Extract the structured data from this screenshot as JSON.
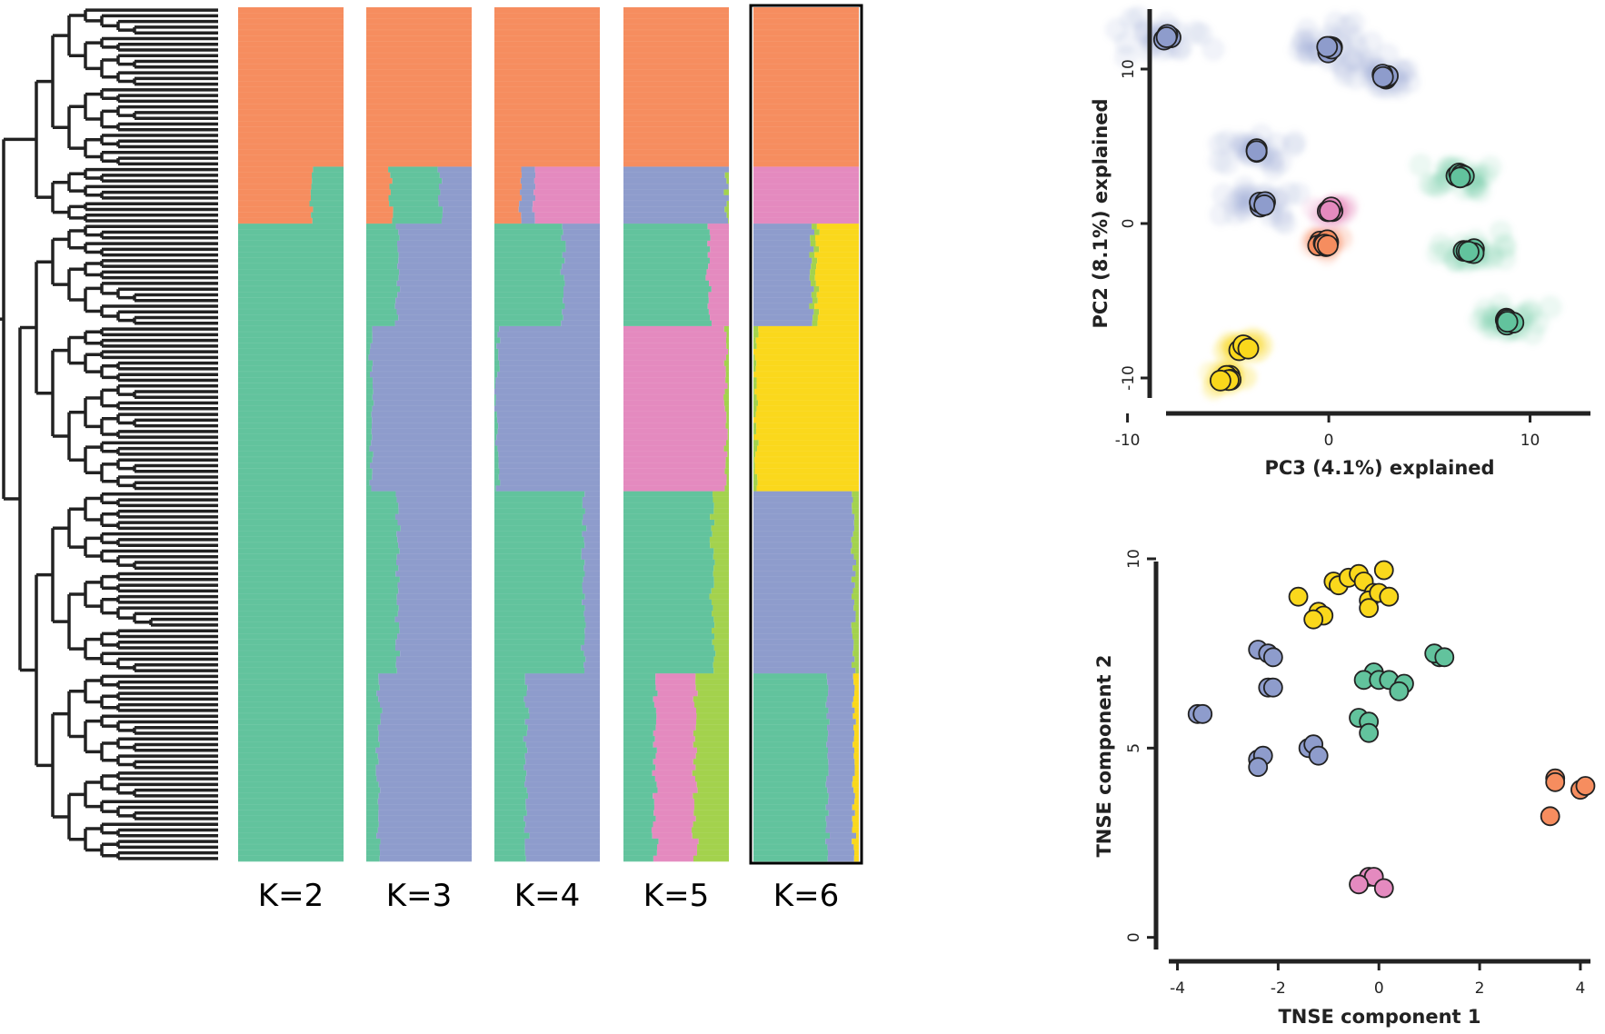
{
  "colors": {
    "orange": "#f68d5f",
    "green": "#62c39d",
    "blue": "#8e9ccc",
    "pink": "#e48abf",
    "lime": "#a3d24d",
    "yellow": "#fad81c"
  },
  "structure": {
    "k_labels": [
      "K=2",
      "K=3",
      "K=4",
      "K=5",
      "K=6"
    ],
    "highlighted": "K=6",
    "n_samples": 150
  },
  "chart_data": [
    {
      "type": "bar",
      "subtype": "stacked-admixture",
      "panels": [
        {
          "label": "K=2",
          "blocks": [
            {
              "rows": [
                0,
                28
              ],
              "components": {
                "orange": 1.0
              }
            },
            {
              "rows": [
                28,
                38
              ],
              "components": {
                "green": 0.3,
                "orange": 0.7
              }
            },
            {
              "rows": [
                38,
                150
              ],
              "components": {
                "green": 1.0
              }
            }
          ]
        },
        {
          "label": "K=3",
          "blocks": [
            {
              "rows": [
                0,
                28
              ],
              "components": {
                "orange": 1.0
              }
            },
            {
              "rows": [
                28,
                38
              ],
              "components": {
                "green": 0.47,
                "orange": 0.23,
                "blue": 0.3
              }
            },
            {
              "rows": [
                38,
                56
              ],
              "components": {
                "green": 0.3,
                "blue": 0.7
              }
            },
            {
              "rows": [
                56,
                85
              ],
              "components": {
                "green": 0.05,
                "blue": 0.95
              }
            },
            {
              "rows": [
                85,
                117
              ],
              "components": {
                "green": 0.3,
                "blue": 0.7
              }
            },
            {
              "rows": [
                117,
                150
              ],
              "components": {
                "green": 0.12,
                "blue": 0.88
              }
            }
          ]
        },
        {
          "label": "K=4",
          "blocks": [
            {
              "rows": [
                0,
                28
              ],
              "components": {
                "orange": 1.0
              }
            },
            {
              "rows": [
                28,
                38
              ],
              "components": {
                "orange": 0.25,
                "blue": 0.13,
                "pink": 0.62
              }
            },
            {
              "rows": [
                38,
                56
              ],
              "components": {
                "green": 0.65,
                "blue": 0.35
              }
            },
            {
              "rows": [
                56,
                85
              ],
              "components": {
                "green": 0.03,
                "blue": 0.97
              }
            },
            {
              "rows": [
                85,
                117
              ],
              "components": {
                "green": 0.85,
                "blue": 0.15
              }
            },
            {
              "rows": [
                117,
                150
              ],
              "components": {
                "green": 0.3,
                "blue": 0.7
              }
            }
          ]
        },
        {
          "label": "K=5",
          "blocks": [
            {
              "rows": [
                0,
                28
              ],
              "components": {
                "orange": 1.0
              }
            },
            {
              "rows": [
                28,
                38
              ],
              "components": {
                "blue": 0.98,
                "lime": 0.02
              }
            },
            {
              "rows": [
                38,
                56
              ],
              "components": {
                "green": 0.8,
                "pink": 0.2
              }
            },
            {
              "rows": [
                56,
                85
              ],
              "components": {
                "pink": 0.97,
                "lime": 0.03
              }
            },
            {
              "rows": [
                85,
                117
              ],
              "components": {
                "green": 0.85,
                "lime": 0.15
              }
            },
            {
              "rows": [
                117,
                150
              ],
              "components": {
                "green": 0.3,
                "pink": 0.38,
                "lime": 0.32
              }
            }
          ]
        },
        {
          "label": "K=6",
          "blocks": [
            {
              "rows": [
                0,
                28
              ],
              "components": {
                "orange": 1.0
              }
            },
            {
              "rows": [
                28,
                38
              ],
              "components": {
                "pink": 1.0
              }
            },
            {
              "rows": [
                38,
                56
              ],
              "components": {
                "blue": 0.55,
                "lime": 0.05,
                "yellow": 0.4
              }
            },
            {
              "rows": [
                56,
                85
              ],
              "components": {
                "lime": 0.03,
                "yellow": 0.97
              }
            },
            {
              "rows": [
                85,
                117
              ],
              "components": {
                "blue": 0.95,
                "lime": 0.05
              }
            },
            {
              "rows": [
                117,
                150
              ],
              "components": {
                "green": 0.7,
                "blue": 0.25,
                "yellow": 0.05
              }
            }
          ]
        }
      ]
    },
    {
      "type": "scatter",
      "xlabel": "PC3 (4.1%) explained",
      "ylabel": "PC2 (8.1%) explained",
      "xlim": [
        -14,
        13
      ],
      "ylim": [
        -12,
        14
      ],
      "xticks": [
        -10,
        0,
        10
      ],
      "yticks": [
        -10,
        0,
        10
      ],
      "tick_labels_x": [
        "-10",
        "0",
        "10"
      ],
      "tick_labels_y": [
        "-10",
        "0",
        "10"
      ],
      "clusters": [
        {
          "color": "blue",
          "x": -8,
          "y": 12,
          "n": 5
        },
        {
          "color": "blue",
          "x": 0,
          "y": 11.3,
          "n": 6
        },
        {
          "color": "blue",
          "x": 2.8,
          "y": 9.5,
          "n": 6
        },
        {
          "color": "blue",
          "x": -3.5,
          "y": 4.7,
          "n": 4
        },
        {
          "color": "blue",
          "x": -3.3,
          "y": 1.3,
          "n": 4
        },
        {
          "color": "pink",
          "x": 0.2,
          "y": 0.9,
          "n": 4
        },
        {
          "color": "orange",
          "x": -0.2,
          "y": -1.3,
          "n": 8
        },
        {
          "color": "green",
          "x": 6.5,
          "y": 3.1,
          "n": 6
        },
        {
          "color": "green",
          "x": 7,
          "y": -1.8,
          "n": 7
        },
        {
          "color": "green",
          "x": 8.8,
          "y": -6.3,
          "n": 6
        },
        {
          "color": "yellow",
          "x": -4.2,
          "y": -8,
          "n": 6
        },
        {
          "color": "yellow",
          "x": -5,
          "y": -10,
          "n": 7
        }
      ]
    },
    {
      "type": "scatter",
      "xlabel": "TNSE component 1",
      "ylabel": "TNSE component 2",
      "xlim": [
        -4.1,
        4.2
      ],
      "ylim": [
        -0.2,
        10
      ],
      "xticks": [
        -4,
        -2,
        0,
        2,
        4
      ],
      "yticks": [
        0,
        5,
        10
      ],
      "tick_labels_x": [
        "-4",
        "-2",
        "0",
        "2",
        "4"
      ],
      "tick_labels_y": [
        "0",
        "5",
        "10"
      ],
      "points": [
        {
          "color": "yellow",
          "x": -1.6,
          "y": 9.0
        },
        {
          "color": "yellow",
          "x": -0.9,
          "y": 9.4
        },
        {
          "color": "yellow",
          "x": -0.8,
          "y": 9.3
        },
        {
          "color": "yellow",
          "x": -0.6,
          "y": 9.5
        },
        {
          "color": "yellow",
          "x": -0.4,
          "y": 9.6
        },
        {
          "color": "yellow",
          "x": -0.3,
          "y": 9.4
        },
        {
          "color": "yellow",
          "x": -0.1,
          "y": 9.1
        },
        {
          "color": "yellow",
          "x": -0.2,
          "y": 8.9
        },
        {
          "color": "yellow",
          "x": 0.1,
          "y": 9.7
        },
        {
          "color": "yellow",
          "x": 0.0,
          "y": 9.1
        },
        {
          "color": "yellow",
          "x": 0.2,
          "y": 9.0
        },
        {
          "color": "yellow",
          "x": -0.2,
          "y": 8.7
        },
        {
          "color": "yellow",
          "x": -1.2,
          "y": 8.6
        },
        {
          "color": "yellow",
          "x": -1.1,
          "y": 8.5
        },
        {
          "color": "yellow",
          "x": -1.3,
          "y": 8.4
        },
        {
          "color": "blue",
          "x": -2.4,
          "y": 7.6
        },
        {
          "color": "blue",
          "x": -2.2,
          "y": 7.5
        },
        {
          "color": "blue",
          "x": -2.1,
          "y": 7.4
        },
        {
          "color": "blue",
          "x": -2.2,
          "y": 6.6
        },
        {
          "color": "blue",
          "x": -2.1,
          "y": 6.6
        },
        {
          "color": "blue",
          "x": -3.6,
          "y": 5.9
        },
        {
          "color": "blue",
          "x": -3.5,
          "y": 5.9
        },
        {
          "color": "blue",
          "x": -1.4,
          "y": 5.0
        },
        {
          "color": "blue",
          "x": -1.3,
          "y": 5.1
        },
        {
          "color": "blue",
          "x": -1.2,
          "y": 4.8
        },
        {
          "color": "blue",
          "x": -2.4,
          "y": 4.7
        },
        {
          "color": "blue",
          "x": -2.3,
          "y": 4.8
        },
        {
          "color": "blue",
          "x": -2.4,
          "y": 4.5
        },
        {
          "color": "green",
          "x": 1.2,
          "y": 7.4
        },
        {
          "color": "green",
          "x": 1.1,
          "y": 7.5
        },
        {
          "color": "green",
          "x": 1.3,
          "y": 7.4
        },
        {
          "color": "green",
          "x": -0.1,
          "y": 7.0
        },
        {
          "color": "green",
          "x": -0.3,
          "y": 6.8
        },
        {
          "color": "green",
          "x": 0.0,
          "y": 6.8
        },
        {
          "color": "green",
          "x": 0.2,
          "y": 6.8
        },
        {
          "color": "green",
          "x": 0.5,
          "y": 6.7
        },
        {
          "color": "green",
          "x": 0.4,
          "y": 6.5
        },
        {
          "color": "green",
          "x": -0.4,
          "y": 5.8
        },
        {
          "color": "green",
          "x": -0.2,
          "y": 5.7
        },
        {
          "color": "green",
          "x": -0.2,
          "y": 5.4
        },
        {
          "color": "orange",
          "x": 3.5,
          "y": 4.2
        },
        {
          "color": "orange",
          "x": 3.5,
          "y": 4.1
        },
        {
          "color": "orange",
          "x": 4.0,
          "y": 3.9
        },
        {
          "color": "orange",
          "x": 4.1,
          "y": 4.0
        },
        {
          "color": "orange",
          "x": 3.4,
          "y": 3.2
        },
        {
          "color": "pink",
          "x": -0.2,
          "y": 1.6
        },
        {
          "color": "pink",
          "x": -0.1,
          "y": 1.6
        },
        {
          "color": "pink",
          "x": -0.4,
          "y": 1.4
        },
        {
          "color": "pink",
          "x": 0.1,
          "y": 1.3
        }
      ]
    }
  ]
}
